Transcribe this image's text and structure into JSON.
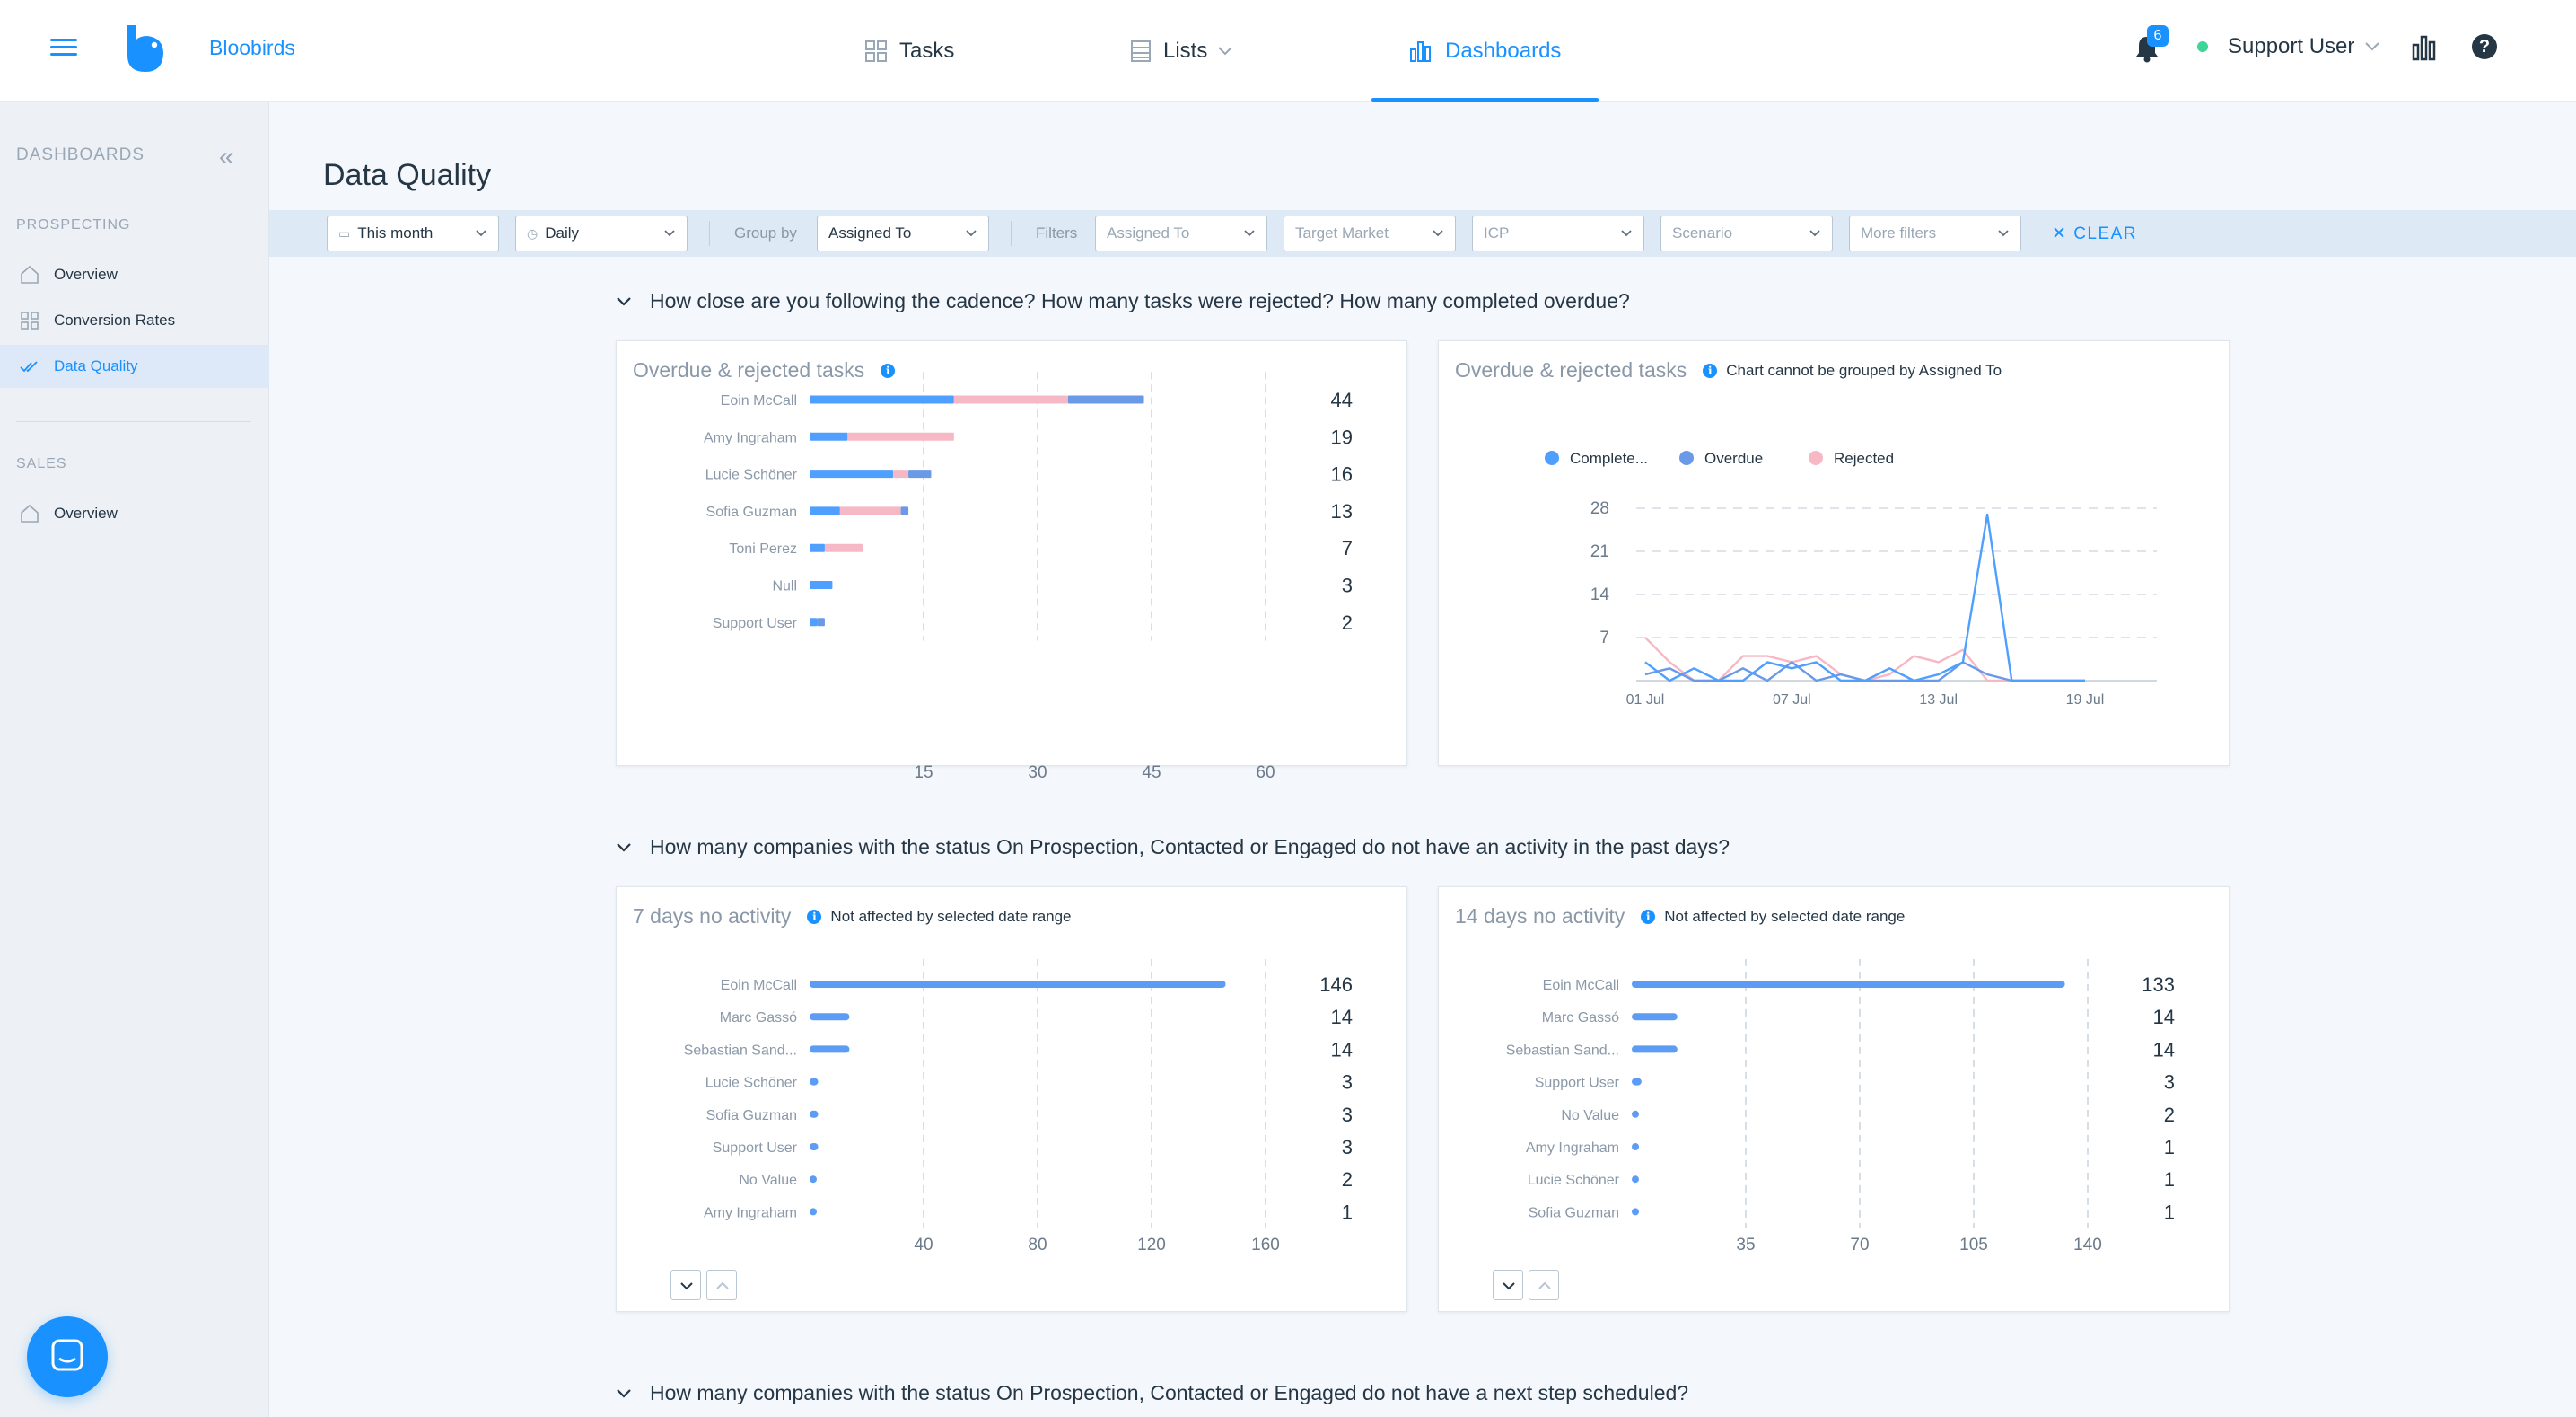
{
  "app": {
    "brand": "Bloobirds",
    "nav": [
      {
        "label": "Tasks",
        "icon": "grid-icon"
      },
      {
        "label": "Lists",
        "icon": "list-icon"
      },
      {
        "label": "Dashboards",
        "icon": "bar-chart-icon"
      }
    ],
    "notifications": "6",
    "user": "Support User"
  },
  "sidebar": {
    "header": "DASHBOARDS",
    "sections": [
      {
        "title": "PROSPECTING",
        "items": [
          "Overview",
          "Conversion Rates",
          "Data Quality"
        ]
      },
      {
        "title": "SALES",
        "items": [
          "Overview"
        ]
      }
    ],
    "active": "Data Quality"
  },
  "page": {
    "title": "Data Quality",
    "filters": {
      "date_range": "This month",
      "granularity": "Daily",
      "group_by_label": "Group by",
      "group_by": "Assigned To",
      "filters_label": "Filters",
      "filter_placeholders": [
        "Assigned To",
        "Target Market",
        "ICP",
        "Scenario",
        "More filters"
      ],
      "clear": "CLEAR"
    }
  },
  "questions": [
    "How close are you following the cadence? How many tasks were rejected? How many completed overdue?",
    "How many companies with the status On Prospection, Contacted or Engaged do not have an activity in the past days?",
    "How many companies with the status On Prospection, Contacted or Engaged do not have a next step scheduled?"
  ],
  "cards": {
    "c1": {
      "title": "Overdue & rejected tasks"
    },
    "c2": {
      "title": "Overdue & rejected tasks",
      "note": "Chart cannot be grouped by Assigned To"
    },
    "c3": {
      "title": "7 days no activity",
      "note": "Not affected by selected date range"
    },
    "c4": {
      "title": "14 days no activity",
      "note": "Not affected by selected date range"
    }
  },
  "colors": {
    "accent": "#1991ff",
    "completed": "#4f9fff",
    "overdue": "#6a99e8",
    "rejected": "#f7b8c6",
    "bar": "#5c9cf5"
  },
  "chart_data": [
    {
      "type": "bar",
      "orientation": "horizontal",
      "stacked": true,
      "categories": [
        "Eoin McCall",
        "Amy Ingraham",
        "Lucie Schöner",
        "Sofia Guzman",
        "Toni Perez",
        "Null",
        "Support User"
      ],
      "series": [
        {
          "name": "Complete...",
          "values": [
            19,
            5,
            11,
            4,
            2,
            3,
            1
          ]
        },
        {
          "name": "Rejected",
          "values": [
            15,
            14,
            2,
            8,
            5,
            0,
            0
          ]
        },
        {
          "name": "Overdue",
          "values": [
            10,
            0,
            3,
            1,
            0,
            0,
            1
          ]
        }
      ],
      "totals": [
        44,
        19,
        16,
        13,
        7,
        3,
        2
      ],
      "xticks": [
        15,
        30,
        45,
        60
      ],
      "xlim": [
        0,
        60
      ],
      "grid": true
    },
    {
      "type": "line",
      "x": [
        "01 Jul",
        "02 Jul",
        "03 Jul",
        "04 Jul",
        "05 Jul",
        "06 Jul",
        "07 Jul",
        "08 Jul",
        "09 Jul",
        "10 Jul",
        "11 Jul",
        "12 Jul",
        "13 Jul",
        "14 Jul",
        "15 Jul",
        "16 Jul",
        "17 Jul",
        "18 Jul",
        "19 Jul"
      ],
      "xticks": [
        "01 Jul",
        "07 Jul",
        "13 Jul",
        "19 Jul"
      ],
      "series": [
        {
          "name": "Complete...",
          "values": [
            3,
            0,
            2,
            0,
            0,
            3,
            2,
            3,
            0,
            0,
            2,
            0,
            1,
            3,
            27,
            0,
            0,
            0,
            0
          ]
        },
        {
          "name": "Overdue",
          "values": [
            1,
            2,
            0,
            0,
            2,
            0,
            3,
            0,
            1,
            0,
            0,
            0,
            0,
            3,
            1,
            0,
            0,
            0,
            0
          ]
        },
        {
          "name": "Rejected",
          "values": [
            7,
            3,
            0,
            0,
            4,
            4,
            3,
            4,
            1,
            0,
            1,
            4,
            3,
            5,
            0,
            0,
            0,
            0,
            0
          ]
        }
      ],
      "yticks": [
        7,
        14,
        21,
        28
      ],
      "ylim": [
        0,
        28
      ],
      "legend": "top-left",
      "grid": true
    },
    {
      "type": "bar",
      "orientation": "horizontal",
      "categories": [
        "Eoin McCall",
        "Marc Gassó",
        "Sebastian Sand...",
        "Lucie Schöner",
        "Sofia Guzman",
        "Support User",
        "No Value",
        "Amy Ingraham"
      ],
      "values": [
        146,
        14,
        14,
        3,
        3,
        3,
        2,
        1
      ],
      "xticks": [
        40,
        80,
        120,
        160
      ],
      "xlim": [
        0,
        160
      ],
      "grid": true
    },
    {
      "type": "bar",
      "orientation": "horizontal",
      "categories": [
        "Eoin McCall",
        "Marc Gassó",
        "Sebastian Sand...",
        "Support User",
        "No Value",
        "Amy Ingraham",
        "Lucie Schöner",
        "Sofia Guzman"
      ],
      "values": [
        133,
        14,
        14,
        3,
        2,
        1,
        1,
        1
      ],
      "xticks": [
        35,
        70,
        105,
        140
      ],
      "xlim": [
        0,
        140
      ],
      "grid": true
    }
  ]
}
